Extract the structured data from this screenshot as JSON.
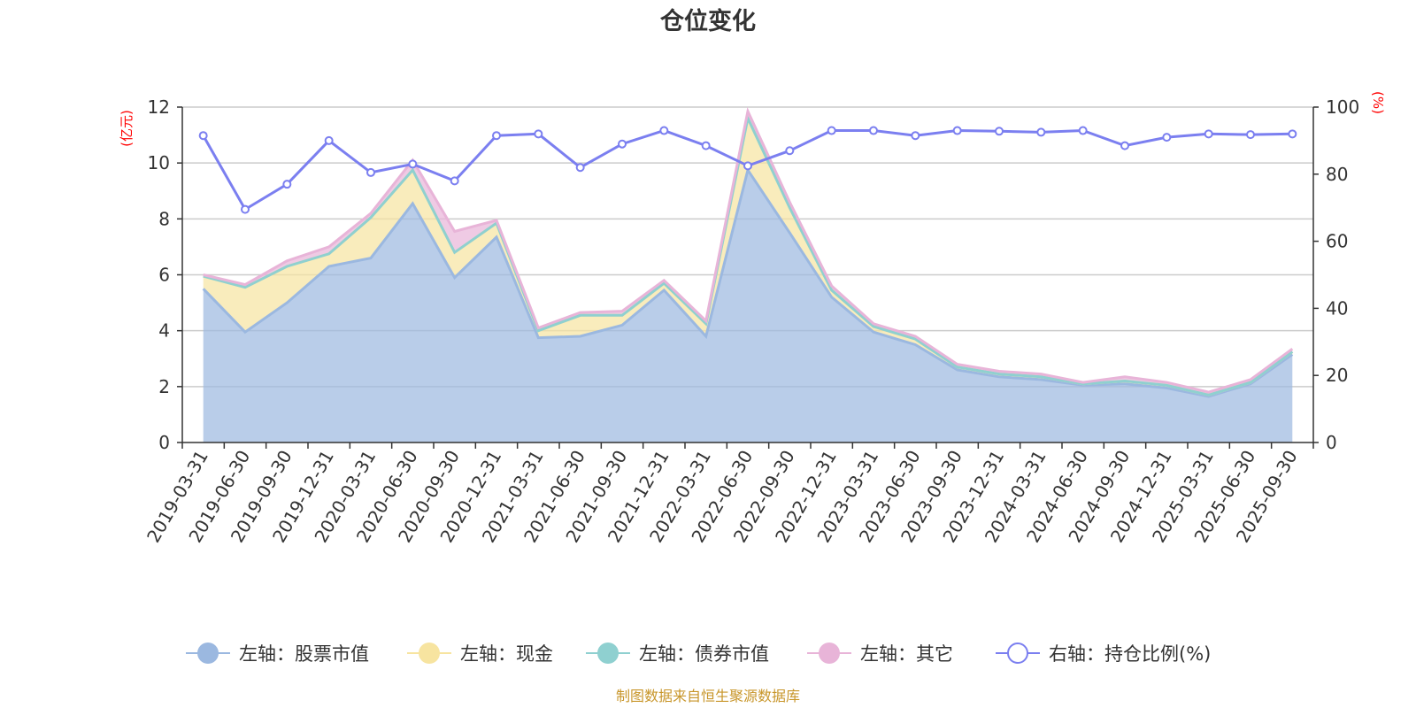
{
  "chart_data": {
    "type": "area",
    "title": "仓位变化",
    "left_unit": "(亿元)",
    "right_unit": "(%)",
    "left_ylim": [
      0,
      12
    ],
    "left_ticks": [
      "0",
      "2",
      "4",
      "6",
      "8",
      "10",
      "12"
    ],
    "right_ylim": [
      0,
      100
    ],
    "right_ticks": [
      "0",
      "20",
      "40",
      "60",
      "80",
      "100"
    ],
    "categories": [
      "2019-03-31",
      "2019-06-30",
      "2019-09-30",
      "2019-12-31",
      "2020-03-31",
      "2020-06-30",
      "2020-09-30",
      "2020-12-31",
      "2021-03-31",
      "2021-06-30",
      "2021-09-30",
      "2021-12-31",
      "2022-03-31",
      "2022-06-30",
      "2022-09-30",
      "2022-12-31",
      "2023-03-31",
      "2023-06-30",
      "2023-09-30",
      "2023-12-31",
      "2024-03-31",
      "2024-06-30",
      "2024-09-30",
      "2024-12-31",
      "2025-03-31",
      "2025-06-30",
      "2025-09-30"
    ],
    "series": [
      {
        "name": "左轴：股票市值",
        "axis": "left",
        "color": "#9bb8e0",
        "values": [
          5.5,
          3.95,
          5.0,
          6.3,
          6.6,
          8.55,
          5.9,
          7.35,
          3.75,
          3.8,
          4.2,
          5.45,
          3.8,
          9.75,
          7.5,
          5.2,
          3.95,
          3.5,
          2.6,
          2.35,
          2.25,
          2.05,
          2.1,
          1.95,
          1.65,
          2.1,
          3.15
        ]
      },
      {
        "name": "左轴：现金",
        "axis": "left",
        "color": "#f7e4a0",
        "values": [
          0.45,
          1.6,
          1.3,
          0.45,
          1.45,
          1.2,
          0.9,
          0.5,
          0.25,
          0.75,
          0.35,
          0.25,
          0.45,
          1.85,
          0.9,
          0.25,
          0.2,
          0.2,
          0.1,
          0.1,
          0.1,
          0.05,
          0.1,
          0.1,
          0.05,
          0.05,
          0.1
        ]
      },
      {
        "name": "左轴：债券市值",
        "axis": "left",
        "color": "#8fd0d0",
        "values": [
          0,
          0,
          0,
          0,
          0,
          0,
          0,
          0,
          0,
          0,
          0,
          0,
          0,
          0,
          0,
          0,
          0,
          0,
          0,
          0,
          0,
          0,
          0,
          0,
          0,
          0,
          0
        ]
      },
      {
        "name": "左轴：其它",
        "axis": "left",
        "color": "#e8b4d8",
        "values": [
          0.05,
          0.1,
          0.2,
          0.25,
          0.15,
          0.35,
          0.75,
          0.1,
          0.1,
          0.1,
          0.15,
          0.1,
          0.1,
          0.25,
          0.2,
          0.15,
          0.1,
          0.1,
          0.1,
          0.1,
          0.1,
          0.05,
          0.15,
          0.1,
          0.1,
          0.1,
          0.1
        ]
      },
      {
        "name": "右轴：持仓比例(%)",
        "axis": "right",
        "color": "#7b7ff0",
        "values": [
          91.5,
          69.5,
          77,
          90,
          80.5,
          83,
          78,
          91.5,
          92,
          82,
          89,
          93,
          88.5,
          82.5,
          87,
          93,
          93,
          91.5,
          93,
          92.8,
          92.5,
          93,
          88.5,
          91,
          92,
          91.8,
          92
        ]
      }
    ]
  },
  "source": "制图数据来自恒生聚源数据库"
}
